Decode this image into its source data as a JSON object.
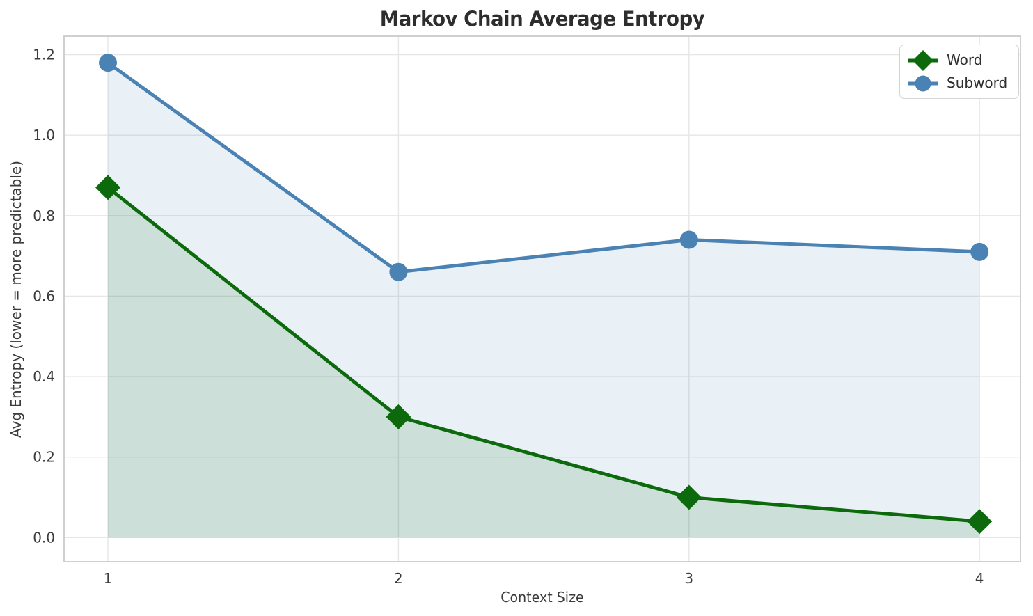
{
  "title": "Markov Chain Average Entropy",
  "chart_data": {
    "type": "line",
    "title": "Markov Chain Average Entropy",
    "xlabel": "Context Size",
    "ylabel": "Avg Entropy (lower = more predictable)",
    "x": [
      1,
      2,
      3,
      4
    ],
    "xticks": [
      1,
      2,
      3,
      4
    ],
    "xticklabels": [
      "1",
      "2",
      "3",
      "4"
    ],
    "yticks": [
      0.0,
      0.2,
      0.4,
      0.6,
      0.8,
      1.0,
      1.2
    ],
    "yticklabels": [
      "0.0",
      "0.2",
      "0.4",
      "0.6",
      "0.8",
      "1.0",
      "1.2"
    ],
    "xlim": [
      0.849,
      4.141
    ],
    "ylim": [
      -0.06,
      1.246
    ],
    "grid": true,
    "legend_position": "upper right",
    "fill_baseline": 0.0,
    "series": [
      {
        "name": "Word",
        "values": [
          0.87,
          0.3,
          0.1,
          0.04
        ],
        "color": "#0c6a0c",
        "marker": "diamond",
        "fill": true,
        "fill_opacity": 0.13
      },
      {
        "name": "Subword",
        "values": [
          1.18,
          0.66,
          0.74,
          0.71
        ],
        "color": "#4a82b4",
        "marker": "circle",
        "fill": true,
        "fill_opacity": 0.12
      }
    ]
  },
  "colors": {
    "grid": "#e6e6e6",
    "spine": "#cbcbcb",
    "tick_label": "#3b3b3b",
    "title": "#2d2d2d",
    "background": "#ffffff"
  }
}
